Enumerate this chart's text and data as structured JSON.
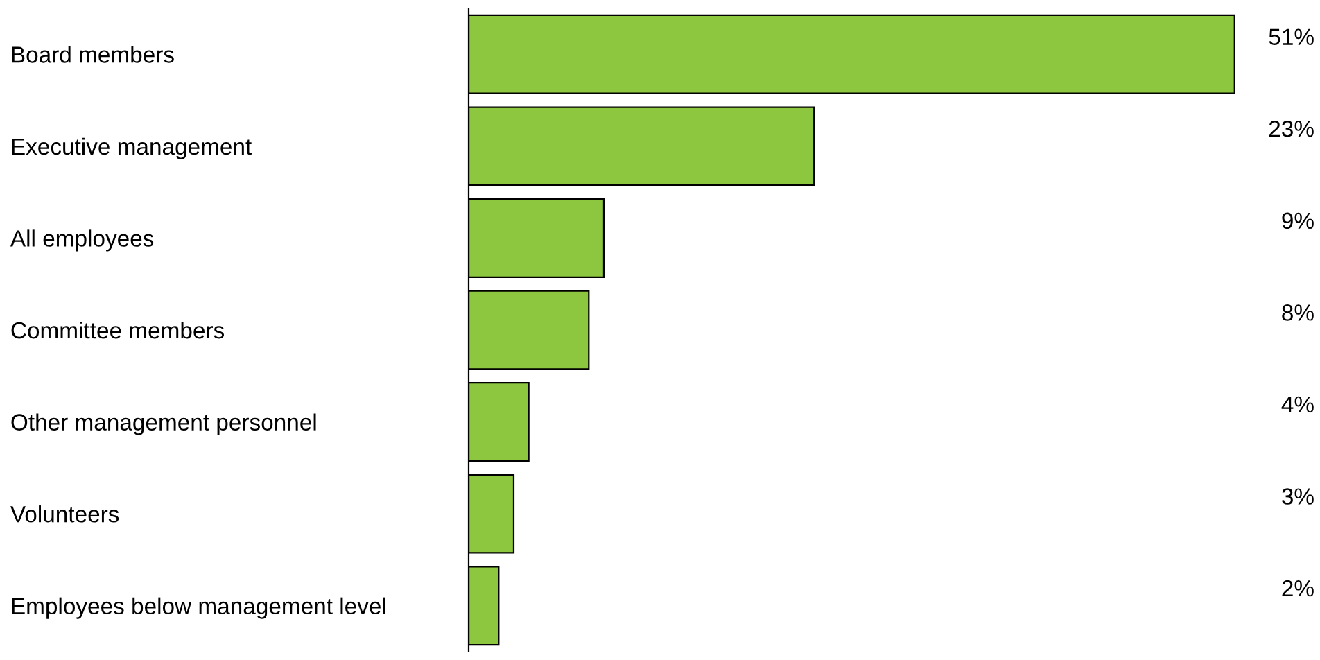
{
  "chart_data": {
    "type": "bar",
    "orientation": "horizontal",
    "categories": [
      "Board members",
      "Executive management",
      "All employees",
      "Committee members",
      "Other management personnel",
      "Volunteers",
      "Employees below management level"
    ],
    "values": [
      51,
      23,
      9,
      8,
      4,
      3,
      2
    ],
    "value_labels": [
      "51%",
      "23%",
      "9%",
      "8%",
      "4%",
      "3%",
      "2%"
    ],
    "color": "#8dc63f",
    "grid": false,
    "legend": false,
    "tick_labels": "y"
  }
}
